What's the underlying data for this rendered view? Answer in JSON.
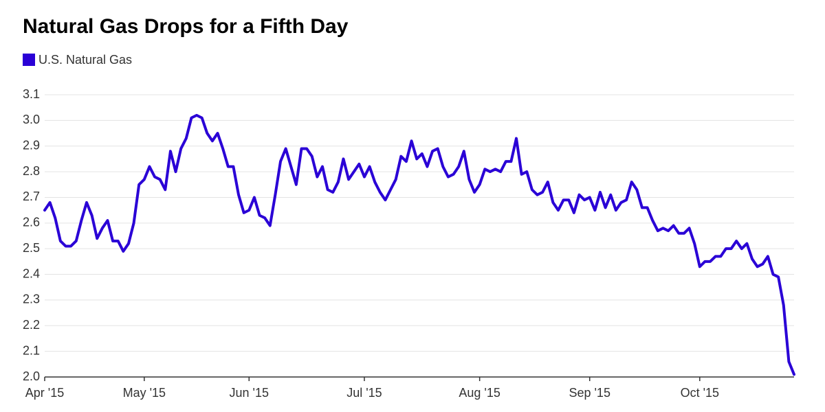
{
  "chart_data": {
    "type": "line",
    "title": "Natural Gas Drops for a Fifth Day",
    "categories": [
      "Apr '15",
      null,
      null,
      null,
      null,
      null,
      null,
      null,
      null,
      null,
      null,
      null,
      null,
      null,
      null,
      null,
      null,
      null,
      null,
      "May '15",
      null,
      null,
      null,
      null,
      null,
      null,
      null,
      null,
      null,
      null,
      null,
      null,
      null,
      null,
      null,
      null,
      null,
      null,
      null,
      "Jun '15",
      null,
      null,
      null,
      null,
      null,
      null,
      null,
      null,
      null,
      null,
      null,
      null,
      null,
      null,
      null,
      null,
      null,
      null,
      null,
      null,
      null,
      "Jul '15",
      null,
      null,
      null,
      null,
      null,
      null,
      null,
      null,
      null,
      null,
      null,
      null,
      null,
      null,
      null,
      null,
      null,
      null,
      null,
      null,
      null,
      "Aug '15",
      null,
      null,
      null,
      null,
      null,
      null,
      null,
      null,
      null,
      null,
      null,
      null,
      null,
      null,
      null,
      null,
      null,
      null,
      null,
      null,
      "Sep '15",
      null,
      null,
      null,
      null,
      null,
      null,
      null,
      null,
      null,
      null,
      null,
      null,
      null,
      null,
      null,
      null,
      null,
      null,
      null,
      null,
      "Oct '15",
      null,
      null,
      null,
      null,
      null,
      null,
      null,
      null,
      null,
      null,
      null,
      null,
      null,
      null,
      null,
      null,
      null,
      null
    ],
    "series": [
      {
        "name": "U.S. Natural Gas",
        "color": "#2a00d6",
        "values": [
          2.65,
          2.68,
          2.62,
          2.53,
          2.51,
          2.51,
          2.53,
          2.61,
          2.68,
          2.63,
          2.54,
          2.58,
          2.61,
          2.53,
          2.53,
          2.49,
          2.52,
          2.6,
          2.75,
          2.77,
          2.82,
          2.78,
          2.77,
          2.73,
          2.88,
          2.8,
          2.89,
          2.93,
          3.01,
          3.02,
          3.01,
          2.95,
          2.92,
          2.95,
          2.89,
          2.82,
          2.82,
          2.71,
          2.64,
          2.65,
          2.7,
          2.63,
          2.62,
          2.59,
          2.71,
          2.84,
          2.89,
          2.82,
          2.75,
          2.89,
          2.89,
          2.86,
          2.78,
          2.82,
          2.73,
          2.72,
          2.76,
          2.85,
          2.77,
          2.8,
          2.83,
          2.78,
          2.82,
          2.76,
          2.72,
          2.69,
          2.73,
          2.77,
          2.86,
          2.84,
          2.92,
          2.85,
          2.87,
          2.82,
          2.88,
          2.89,
          2.82,
          2.78,
          2.79,
          2.82,
          2.88,
          2.77,
          2.72,
          2.75,
          2.81,
          2.8,
          2.81,
          2.8,
          2.84,
          2.84,
          2.93,
          2.79,
          2.8,
          2.73,
          2.71,
          2.72,
          2.76,
          2.68,
          2.65,
          2.69,
          2.69,
          2.64,
          2.71,
          2.69,
          2.7,
          2.65,
          2.72,
          2.66,
          2.71,
          2.65,
          2.68,
          2.69,
          2.76,
          2.73,
          2.66,
          2.66,
          2.61,
          2.57,
          2.58,
          2.57,
          2.59,
          2.56,
          2.56,
          2.58,
          2.52,
          2.43,
          2.45,
          2.45,
          2.47,
          2.47,
          2.5,
          2.5,
          2.53,
          2.5,
          2.52,
          2.46,
          2.43,
          2.44,
          2.47,
          2.4,
          2.39,
          2.28,
          2.06,
          2.01
        ]
      }
    ],
    "ylim": [
      2,
      3.1
    ],
    "yticks": [
      {
        "value": 2,
        "label": "2.0"
      },
      2.1,
      2.2,
      2.3,
      2.4,
      2.5,
      2.6,
      2.7,
      2.8,
      2.9,
      {
        "value": 3,
        "label": "3.0"
      },
      3.1
    ],
    "grid": true
  }
}
